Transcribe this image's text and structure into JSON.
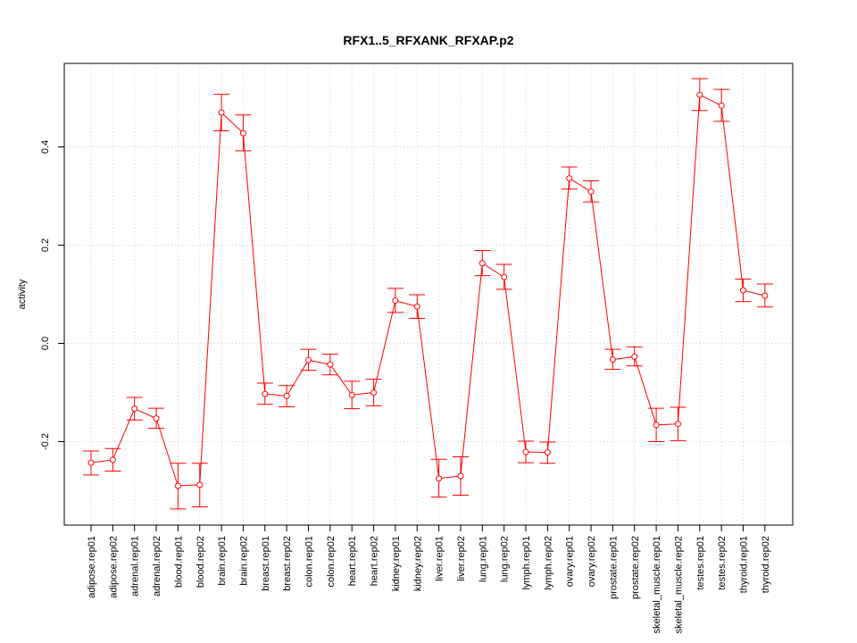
{
  "chart_data": {
    "type": "line",
    "title": "RFX1..5_RFXANK_RFXAP.p2",
    "xlabel": "",
    "ylabel": "activity",
    "ylim": [
      -0.37,
      0.57
    ],
    "yticks": [
      -0.2,
      0.0,
      0.2,
      0.4
    ],
    "ytick_labels": [
      "-0.2",
      "0.0",
      "0.2",
      "0.4"
    ],
    "grid": true,
    "legend": "none",
    "color": "#ff0000",
    "categories": [
      "adipose.rep01",
      "adipose.rep02",
      "adrenal.rep01",
      "adrenal.rep02",
      "blood.rep01",
      "blood.rep02",
      "brain.rep01",
      "brain.rep02",
      "breast.rep01",
      "breast.rep02",
      "colon.rep01",
      "colon.rep02",
      "heart.rep01",
      "heart.rep02",
      "kidney.rep01",
      "kidney.rep02",
      "liver.rep01",
      "liver.rep02",
      "lung.rep01",
      "lung.rep02",
      "lymph.rep01",
      "lymph.rep02",
      "ovary.rep01",
      "ovary.rep02",
      "prostate.rep01",
      "prostate.rep02",
      "skeletal_muscle.rep01",
      "skeletal_muscle.rep02",
      "testes.rep01",
      "testes.rep02",
      "thyroid.rep01",
      "thyroid.rep02"
    ],
    "values": [
      -0.243,
      -0.237,
      -0.133,
      -0.153,
      -0.29,
      -0.288,
      0.47,
      0.428,
      -0.103,
      -0.107,
      -0.034,
      -0.043,
      -0.105,
      -0.1,
      0.087,
      0.075,
      -0.275,
      -0.27,
      0.163,
      0.135,
      -0.221,
      -0.222,
      0.336,
      0.309,
      -0.033,
      -0.027,
      -0.166,
      -0.164,
      0.506,
      0.484,
      0.108,
      0.097
    ],
    "err_low": [
      -0.268,
      -0.26,
      -0.156,
      -0.173,
      -0.337,
      -0.333,
      0.433,
      0.392,
      -0.124,
      -0.129,
      -0.055,
      -0.064,
      -0.133,
      -0.127,
      0.063,
      0.051,
      -0.313,
      -0.309,
      0.138,
      0.11,
      -0.243,
      -0.244,
      0.314,
      0.288,
      -0.053,
      -0.046,
      -0.2,
      -0.198,
      0.474,
      0.452,
      0.085,
      0.074
    ],
    "err_high": [
      -0.219,
      -0.214,
      -0.11,
      -0.132,
      -0.244,
      -0.244,
      0.507,
      0.465,
      -0.081,
      -0.086,
      -0.012,
      -0.022,
      -0.077,
      -0.073,
      0.112,
      0.099,
      -0.236,
      -0.231,
      0.189,
      0.161,
      -0.199,
      -0.201,
      0.359,
      0.331,
      -0.012,
      -0.007,
      -0.132,
      -0.13,
      0.539,
      0.517,
      0.131,
      0.121
    ]
  }
}
